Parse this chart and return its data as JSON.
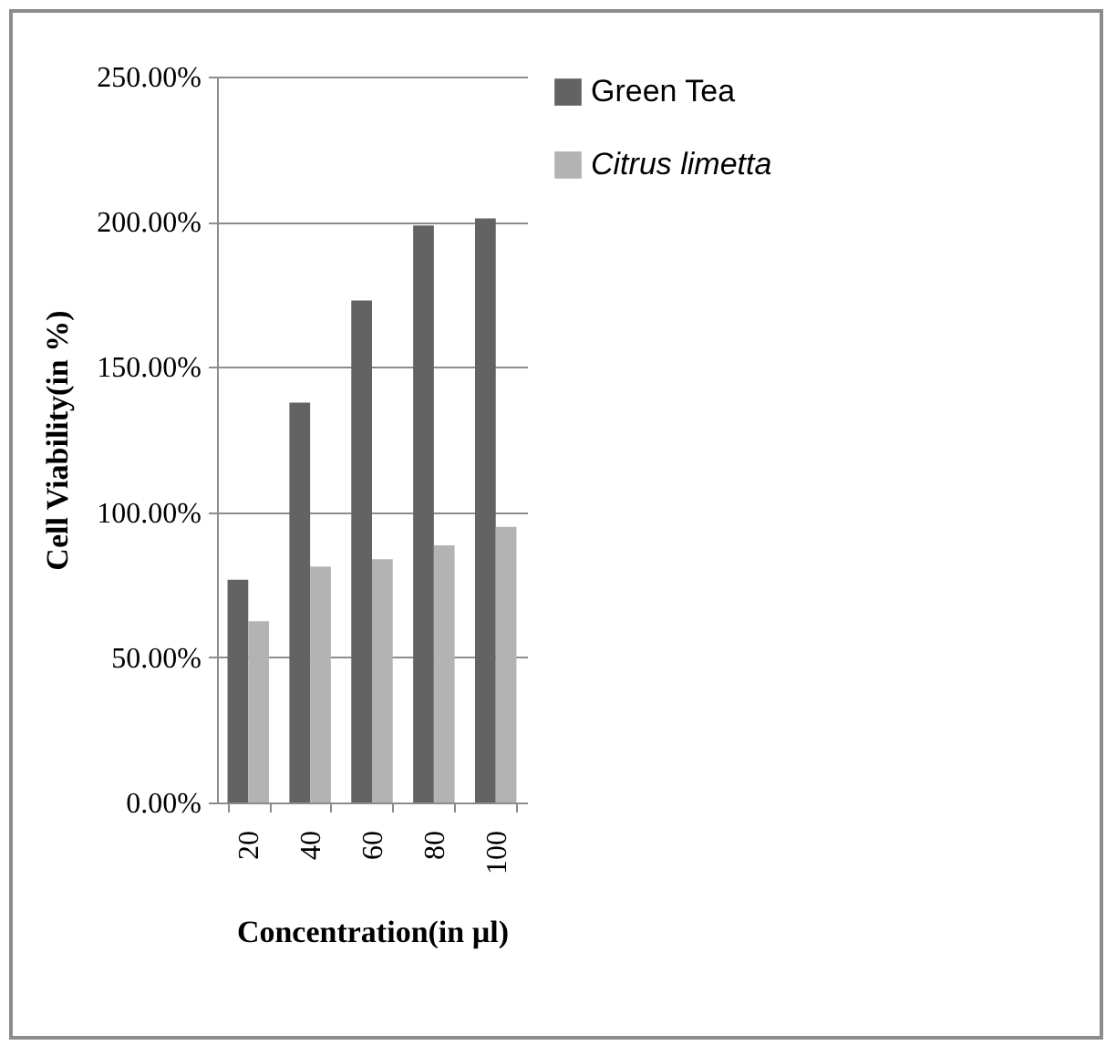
{
  "chart_data": {
    "type": "bar",
    "xlabel": "Concentration(in µl)",
    "ylabel": "Cell Viability(in %)",
    "categories": [
      "20",
      "40",
      "60",
      "80",
      "100"
    ],
    "series": [
      {
        "name": "Green Tea",
        "color": "#636363",
        "values": [
          76.7,
          137.7,
          172.9,
          198.7,
          201.2
        ]
      },
      {
        "name": "Citrus limetta",
        "color": "#b3b3b3",
        "values": [
          62.4,
          81.3,
          83.8,
          88.6,
          94.9
        ]
      }
    ],
    "ylim": [
      0,
      250
    ],
    "yticks": [
      {
        "value": 0,
        "label": "0.00%"
      },
      {
        "value": 50,
        "label": "50.00%"
      },
      {
        "value": 100,
        "label": "100.00%"
      },
      {
        "value": 150,
        "label": "150.00%"
      },
      {
        "value": 200,
        "label": "200.00%"
      },
      {
        "value": 250,
        "label": "250.00%"
      }
    ],
    "grid": "y",
    "legend": "right"
  }
}
